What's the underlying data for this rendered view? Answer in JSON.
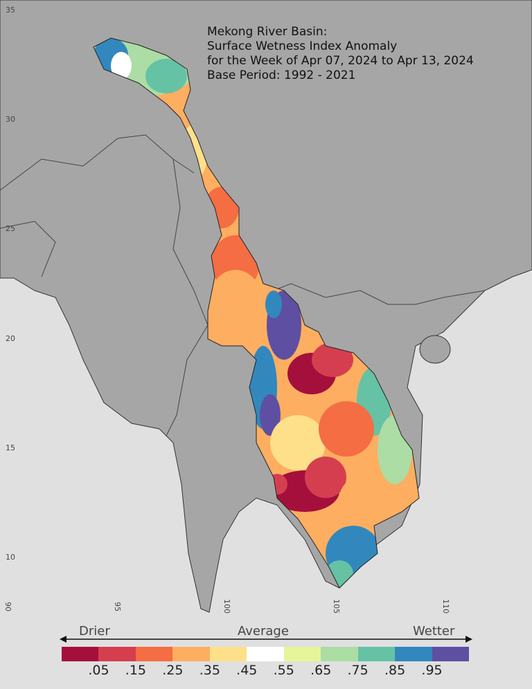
{
  "title": {
    "lines": [
      "Mekong River Basin:",
      "Surface Wetness Index Anomaly",
      "for the Week of Apr 07, 2024 to Apr 13, 2024",
      "Base Period: 1992 - 2021"
    ]
  },
  "axes": {
    "latitude_labels": [
      "35",
      "30",
      "25",
      "20",
      "15",
      "10"
    ],
    "longitude_labels": [
      "90",
      "95",
      "100",
      "105",
      "110"
    ]
  },
  "colors": {
    "sea": "#e0e0e0",
    "land": "#a6a6a6",
    "borders": "#333333"
  },
  "legend": {
    "left_label": "Drier",
    "center_label": "Average",
    "right_label": "Wetter",
    "colors": [
      "#a50f3c",
      "#d53e4f",
      "#f46d43",
      "#fdae61",
      "#fee08b",
      "#ffffff",
      "#e6f598",
      "#abdda4",
      "#66c2a5",
      "#3288bd",
      "#5e4fa2"
    ],
    "ticks": [
      ".05",
      ".15",
      ".25",
      ".35",
      ".45",
      ".55",
      ".65",
      ".75",
      ".85",
      ".95"
    ]
  }
}
